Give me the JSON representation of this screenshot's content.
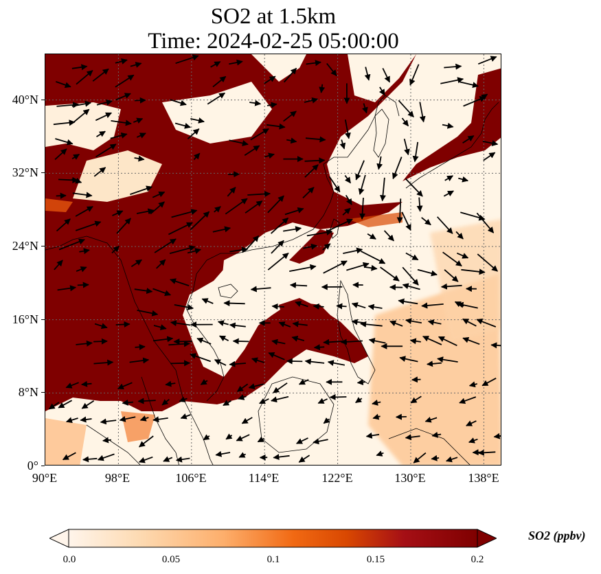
{
  "title": {
    "line1": "SO2 at 1.5km",
    "line2": "Time: 2024-02-25 05:00:00"
  },
  "map": {
    "extent": {
      "lon_min": 90,
      "lon_max": 140,
      "lat_min": 0,
      "lat_max": 45
    },
    "gridlines": true,
    "lat_ticks": [
      {
        "value": 0,
        "label": "0°"
      },
      {
        "value": 8,
        "label": "8°N"
      },
      {
        "value": 16,
        "label": "16°N"
      },
      {
        "value": 24,
        "label": "24°N"
      },
      {
        "value": 32,
        "label": "32°N"
      },
      {
        "value": 40,
        "label": "40°N"
      }
    ],
    "lon_ticks": [
      {
        "value": 90,
        "label": "90°E"
      },
      {
        "value": 98,
        "label": "98°E"
      },
      {
        "value": 106,
        "label": "106°E"
      },
      {
        "value": 114,
        "label": "114°E"
      },
      {
        "value": 122,
        "label": "122°E"
      },
      {
        "value": 130,
        "label": "130°E"
      },
      {
        "value": 138,
        "label": "138°E"
      }
    ]
  },
  "colorbar": {
    "title": "SO2 (ppbv)",
    "min": 0.0,
    "max": 0.2,
    "ticks": [
      {
        "value": 0.0,
        "label": "0.0"
      },
      {
        "value": 0.05,
        "label": "0.05"
      },
      {
        "value": 0.1,
        "label": "0.1"
      },
      {
        "value": 0.15,
        "label": "0.15"
      },
      {
        "value": 0.2,
        "label": "0.2"
      }
    ],
    "colors": [
      "#fff5eb",
      "#fdd9b0",
      "#fdae6b",
      "#f16913",
      "#d94801",
      "#a50f15",
      "#7f0000"
    ],
    "extend": "both"
  },
  "colors": {
    "high": "#7f0000",
    "mid": "#d94801",
    "low": "#fdd9b0",
    "background": "#fff5e6",
    "coast": "#000000",
    "arrow": "#000000"
  }
}
